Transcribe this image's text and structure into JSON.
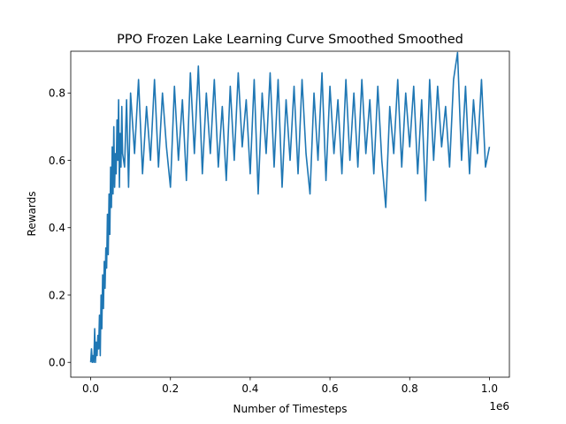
{
  "chart_data": {
    "type": "line",
    "title": "PPO Frozen Lake Learning Curve Smoothed Smoothed",
    "xlabel": "Number of Timesteps",
    "ylabel": "Rewards",
    "x_offset_text": "1e6",
    "xlim": [
      -0.05,
      1.05
    ],
    "ylim": [
      -0.044,
      0.924
    ],
    "x_scale": 1000000,
    "x_ticks": [
      0.0,
      0.2,
      0.4,
      0.6,
      0.8,
      1.0
    ],
    "x_tick_labels": [
      "0.0",
      "0.2",
      "0.4",
      "0.6",
      "0.8",
      "1.0"
    ],
    "y_ticks": [
      0.0,
      0.2,
      0.4,
      0.6,
      0.8
    ],
    "y_tick_labels": [
      "0.0",
      "0.2",
      "0.4",
      "0.6",
      "0.8"
    ],
    "grid": false,
    "series": [
      {
        "color": "#1f77b4",
        "x": [
          0,
          2000,
          4000,
          6000,
          8000,
          10000,
          12000,
          14000,
          16000,
          18000,
          20000,
          22000,
          24000,
          26000,
          28000,
          30000,
          32000,
          34000,
          36000,
          38000,
          40000,
          42000,
          44000,
          46000,
          48000,
          50000,
          52000,
          54000,
          56000,
          58000,
          60000,
          62000,
          64000,
          66000,
          68000,
          70000,
          72000,
          74000,
          76000,
          78000,
          80000,
          85000,
          90000,
          95000,
          100000,
          110000,
          120000,
          130000,
          140000,
          150000,
          160000,
          170000,
          180000,
          190000,
          200000,
          210000,
          220000,
          230000,
          240000,
          250000,
          260000,
          270000,
          280000,
          290000,
          300000,
          310000,
          320000,
          330000,
          340000,
          350000,
          360000,
          370000,
          380000,
          390000,
          400000,
          410000,
          420000,
          430000,
          440000,
          450000,
          460000,
          470000,
          480000,
          490000,
          500000,
          510000,
          520000,
          530000,
          540000,
          550000,
          560000,
          570000,
          580000,
          590000,
          600000,
          610000,
          620000,
          630000,
          640000,
          650000,
          660000,
          670000,
          680000,
          690000,
          700000,
          710000,
          720000,
          730000,
          740000,
          750000,
          760000,
          770000,
          780000,
          790000,
          800000,
          810000,
          820000,
          830000,
          840000,
          850000,
          860000,
          870000,
          880000,
          890000,
          900000,
          910000,
          920000,
          930000,
          940000,
          950000,
          960000,
          970000,
          980000,
          990000,
          1000000
        ],
        "y": [
          0.0,
          0.04,
          0.0,
          0.02,
          0.0,
          0.1,
          0.0,
          0.06,
          0.02,
          0.08,
          0.04,
          0.14,
          0.02,
          0.2,
          0.1,
          0.26,
          0.16,
          0.3,
          0.22,
          0.34,
          0.28,
          0.44,
          0.32,
          0.5,
          0.38,
          0.58,
          0.46,
          0.64,
          0.5,
          0.7,
          0.52,
          0.62,
          0.56,
          0.72,
          0.6,
          0.78,
          0.52,
          0.68,
          0.58,
          0.76,
          0.62,
          0.58,
          0.78,
          0.52,
          0.8,
          0.62,
          0.84,
          0.56,
          0.76,
          0.6,
          0.84,
          0.58,
          0.8,
          0.64,
          0.52,
          0.82,
          0.6,
          0.78,
          0.54,
          0.86,
          0.62,
          0.88,
          0.56,
          0.8,
          0.62,
          0.84,
          0.58,
          0.76,
          0.54,
          0.82,
          0.6,
          0.86,
          0.64,
          0.78,
          0.56,
          0.84,
          0.5,
          0.8,
          0.62,
          0.86,
          0.58,
          0.84,
          0.52,
          0.78,
          0.6,
          0.82,
          0.56,
          0.84,
          0.62,
          0.5,
          0.8,
          0.6,
          0.86,
          0.54,
          0.82,
          0.62,
          0.78,
          0.56,
          0.84,
          0.6,
          0.8,
          0.58,
          0.84,
          0.62,
          0.78,
          0.56,
          0.82,
          0.6,
          0.46,
          0.76,
          0.62,
          0.84,
          0.58,
          0.8,
          0.64,
          0.82,
          0.56,
          0.78,
          0.48,
          0.84,
          0.6,
          0.82,
          0.64,
          0.76,
          0.58,
          0.84,
          0.92,
          0.6,
          0.82,
          0.56,
          0.78,
          0.62,
          0.84,
          0.58,
          0.64
        ]
      }
    ]
  }
}
